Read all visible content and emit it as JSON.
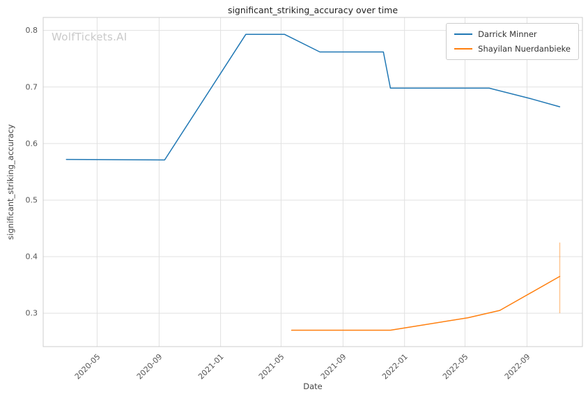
{
  "watermark": "WolfTickets.AI",
  "colors": {
    "background": "#ffffff",
    "grid": "#e1e1e1",
    "spine": "#cccccc",
    "tick_label": "#555555",
    "axis_label": "#444444",
    "title": "#222222",
    "watermark": "#c9c9c9",
    "legend_border": "#cccccc"
  },
  "chart_data": {
    "type": "line",
    "title": "significant_striking_accuracy over time",
    "xlabel": "Date",
    "ylabel": "significant_striking_accuracy",
    "grid": true,
    "legend_position": "upper right",
    "xlim": [
      "2020-01-15",
      "2022-12-20"
    ],
    "ylim": [
      0.241,
      0.823
    ],
    "x_ticks": [
      {
        "label": "2020-05",
        "date": "2020-05-01"
      },
      {
        "label": "2020-09",
        "date": "2020-09-01"
      },
      {
        "label": "2021-01",
        "date": "2021-01-01"
      },
      {
        "label": "2021-05",
        "date": "2021-05-01"
      },
      {
        "label": "2021-09",
        "date": "2021-09-01"
      },
      {
        "label": "2022-01",
        "date": "2022-01-01"
      },
      {
        "label": "2022-05",
        "date": "2022-05-01"
      },
      {
        "label": "2022-09",
        "date": "2022-09-01"
      }
    ],
    "y_ticks": [
      {
        "label": "0.3",
        "value": 0.3
      },
      {
        "label": "0.4",
        "value": 0.4
      },
      {
        "label": "0.5",
        "value": 0.5
      },
      {
        "label": "0.6",
        "value": 0.6
      },
      {
        "label": "0.7",
        "value": 0.7
      },
      {
        "label": "0.8",
        "value": 0.8
      }
    ],
    "series": [
      {
        "name": "Darrick Minner",
        "color": "#1f77b4",
        "points": [
          [
            "2020-03-01",
            0.572
          ],
          [
            "2020-09-12",
            0.571
          ],
          [
            "2021-02-20",
            0.793
          ],
          [
            "2021-05-08",
            0.793
          ],
          [
            "2021-07-17",
            0.762
          ],
          [
            "2021-11-20",
            0.762
          ],
          [
            "2021-12-04",
            0.698
          ],
          [
            "2022-06-18",
            0.698
          ],
          [
            "2022-09-10",
            0.679
          ],
          [
            "2022-11-05",
            0.665
          ]
        ]
      },
      {
        "name": "Shayilan Nuerdanbieke",
        "color": "#ff7f0e",
        "points": [
          [
            "2021-05-22",
            0.27
          ],
          [
            "2021-12-04",
            0.27
          ],
          [
            "2022-01-15",
            0.276
          ],
          [
            "2022-05-07",
            0.292
          ],
          [
            "2022-07-09",
            0.305
          ],
          [
            "2022-11-05",
            0.365
          ]
        ]
      }
    ],
    "error_bar": {
      "date": "2022-11-05",
      "y_low": 0.3,
      "y_high": 0.425,
      "color": "#ff7f0e",
      "opacity": 0.45
    }
  }
}
